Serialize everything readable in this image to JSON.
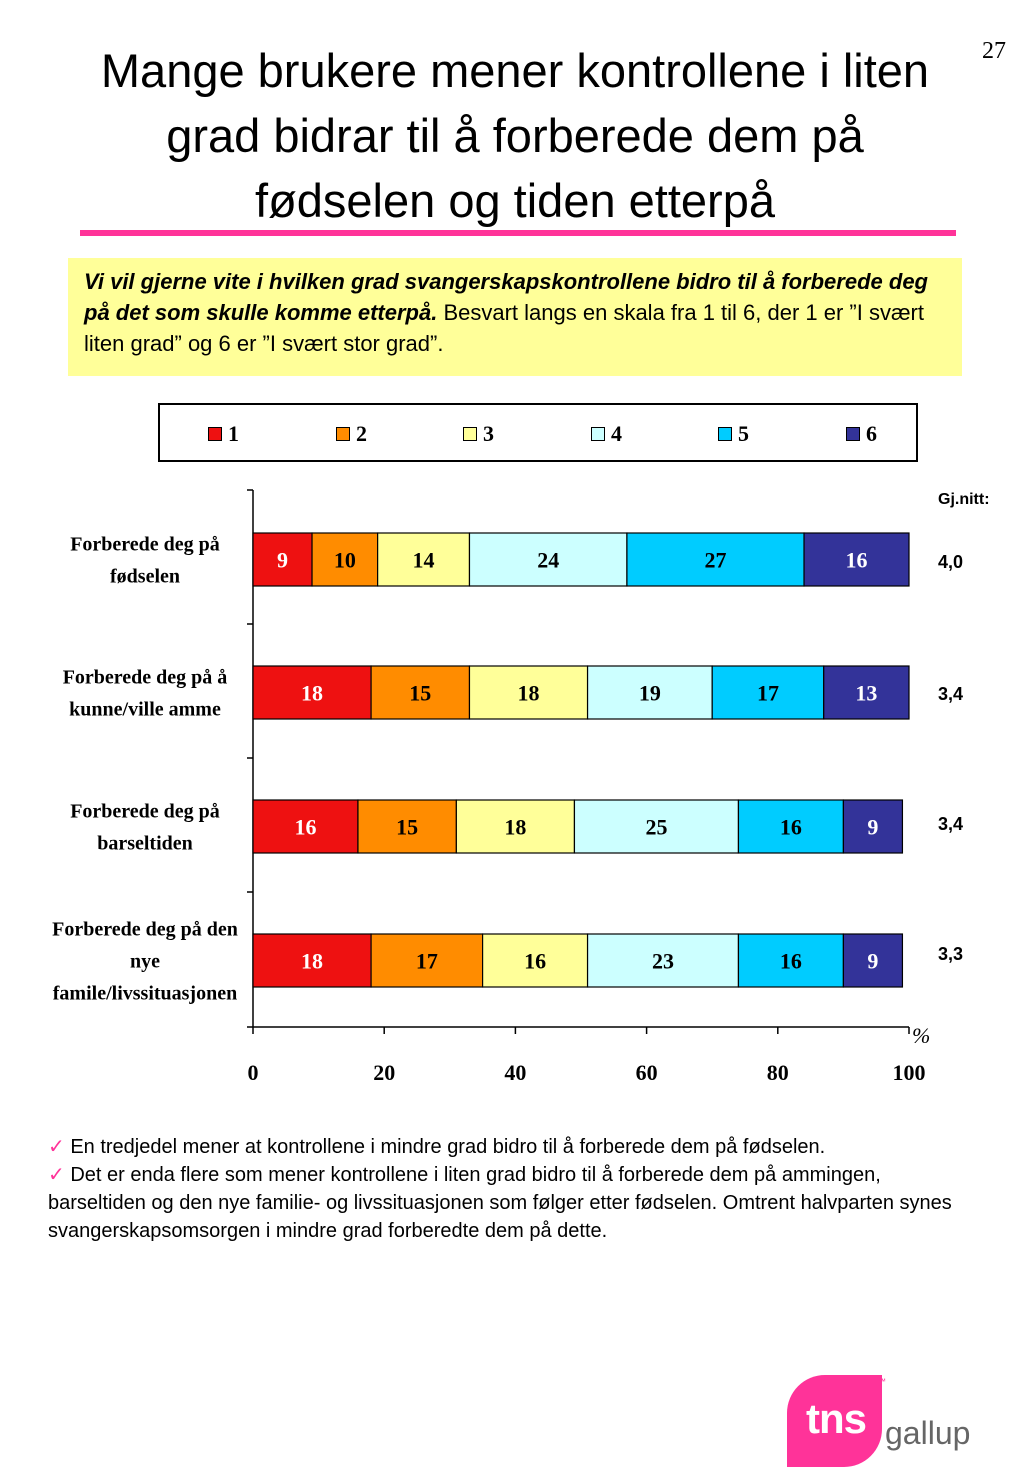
{
  "page_number": "27",
  "title_lines": [
    "Mange brukere mener kontrollene i liten",
    "grad bidrar til å forberede dem på",
    "fødselen og tiden etterpå"
  ],
  "question": {
    "bold_text": "Vi vil gjerne vite i hvilken grad svangerskapskontrollene bidro til å forberede deg på det som skulle komme etterpå.",
    "plain_text": " Besvart langs en skala fra 1 til 6, der 1 er ”I svært liten grad” og 6 er ”I svært stor grad”."
  },
  "average_header": "Gj.nitt:",
  "averages": [
    "4,0",
    "3,4",
    "3,4",
    "3,3"
  ],
  "colors": {
    "accent": "#ff3399",
    "question_bg": "#ffff99"
  },
  "chart_data": {
    "type": "bar",
    "orientation": "horizontal",
    "stacked": true,
    "categories": [
      [
        "Forberede deg på",
        "fødselen"
      ],
      [
        "Forberede deg på å",
        "kunne/ville amme"
      ],
      [
        "Forberede deg på",
        "barseltiden"
      ],
      [
        "Forberede deg på den",
        "nye",
        "famile/livssituasjonen"
      ]
    ],
    "series": [
      {
        "name": "1",
        "color": "#ee1111",
        "values": [
          9,
          18,
          16,
          18
        ]
      },
      {
        "name": "2",
        "color": "#ff8c00",
        "values": [
          10,
          15,
          15,
          17
        ]
      },
      {
        "name": "3",
        "color": "#ffff99",
        "values": [
          14,
          18,
          18,
          16
        ]
      },
      {
        "name": "4",
        "color": "#ccffff",
        "values": [
          24,
          19,
          25,
          23
        ]
      },
      {
        "name": "5",
        "color": "#00ccff",
        "values": [
          27,
          17,
          16,
          16
        ]
      },
      {
        "name": "6",
        "color": "#333399",
        "values": [
          16,
          13,
          9,
          9
        ]
      }
    ],
    "xlim": [
      0,
      100
    ],
    "xticks": [
      "0",
      "20",
      "40",
      "60",
      "80",
      "100"
    ],
    "xlabel": "%",
    "legend_position": "top"
  },
  "bullets": [
    {
      "check": "✓",
      "text": " En tredjedel mener at kontrollene i mindre grad bidro til å forberede dem på fødselen."
    },
    {
      "check": "✓",
      "text": " Det er enda flere som mener kontrollene i liten grad bidro til å forberede dem på ammingen, barseltiden og den nye familie- og livssituasjonen som følger etter fødselen. Omtrent halvparten synes svangerskapsomsorgen i mindre grad  forberedte dem på dette."
    }
  ],
  "logo": {
    "mark": "tns",
    "tm": "™",
    "name": "gallup"
  }
}
